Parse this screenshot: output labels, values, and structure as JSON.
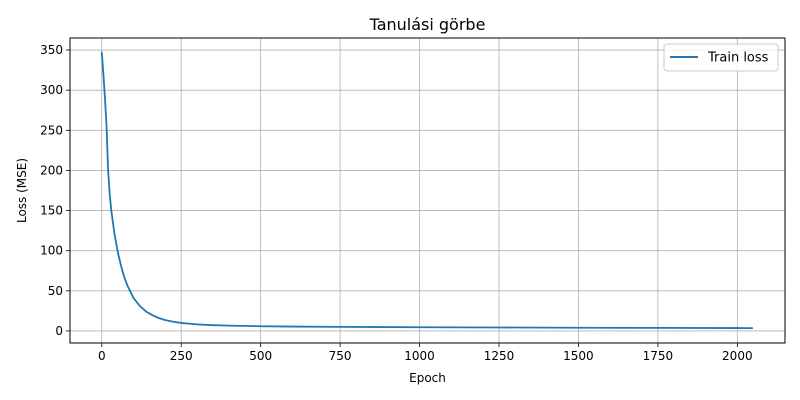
{
  "chart_data": {
    "type": "line",
    "title": "Tanulási görbe",
    "xlabel": "Epoch",
    "ylabel": "Loss (MSE)",
    "xlim": [
      -100,
      2150
    ],
    "ylim": [
      -15,
      365
    ],
    "xticks": [
      0,
      250,
      500,
      750,
      1000,
      1250,
      1500,
      1750,
      2000
    ],
    "yticks": [
      0,
      50,
      100,
      150,
      200,
      250,
      300,
      350
    ],
    "grid": true,
    "legend_position": "top-right",
    "series": [
      {
        "name": "Train loss",
        "color": "#1f77b4",
        "x": [
          0,
          5,
          10,
          15,
          20,
          25,
          30,
          40,
          50,
          60,
          70,
          80,
          100,
          120,
          140,
          160,
          180,
          200,
          225,
          250,
          300,
          350,
          400,
          500,
          600,
          750,
          1000,
          1250,
          1500,
          1750,
          2000,
          2047
        ],
        "y": [
          347,
          320,
          290,
          255,
          200,
          170,
          150,
          121,
          99,
          82,
          68,
          57,
          41,
          31,
          24,
          19.5,
          16,
          13.5,
          11.5,
          10,
          8.2,
          7.2,
          6.6,
          5.9,
          5.5,
          5.1,
          4.6,
          4.3,
          4.0,
          3.8,
          3.6,
          3.5
        ]
      }
    ]
  }
}
